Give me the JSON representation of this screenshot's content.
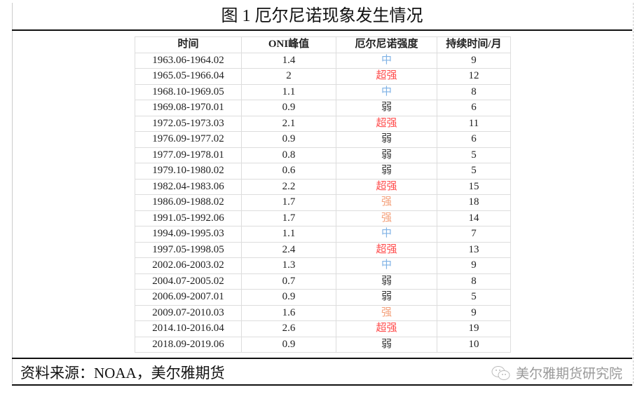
{
  "title": "图 1  厄尔尼诺现象发生情况",
  "table": {
    "headers": [
      "时间",
      "ONI峰值",
      "厄尔尼诺强度",
      "持续时间/月"
    ],
    "rows": [
      [
        "1963.06-1964.02",
        "1.4",
        "中",
        "9"
      ],
      [
        "1965.05-1966.04",
        "2",
        "超强",
        "12"
      ],
      [
        "1968.10-1969.05",
        "1.1",
        "中",
        "8"
      ],
      [
        "1969.08-1970.01",
        "0.9",
        "弱",
        "6"
      ],
      [
        "1972.05-1973.03",
        "2.1",
        "超强",
        "11"
      ],
      [
        "1976.09-1977.02",
        "0.9",
        "弱",
        "6"
      ],
      [
        "1977.09-1978.01",
        "0.8",
        "弱",
        "5"
      ],
      [
        "1979.10-1980.02",
        "0.6",
        "弱",
        "5"
      ],
      [
        "1982.04-1983.06",
        "2.2",
        "超强",
        "15"
      ],
      [
        "1986.09-1988.02",
        "1.7",
        "强",
        "18"
      ],
      [
        "1991.05-1992.06",
        "1.7",
        "强",
        "14"
      ],
      [
        "1994.09-1995.03",
        "1.1",
        "中",
        "7"
      ],
      [
        "1997.05-1998.05",
        "2.4",
        "超强",
        "13"
      ],
      [
        "2002.06-2003.02",
        "1.3",
        "中",
        "9"
      ],
      [
        "2004.07-2005.02",
        "0.7",
        "弱",
        "8"
      ],
      [
        "2006.09-2007.01",
        "0.9",
        "弱",
        "5"
      ],
      [
        "2009.07-2010.03",
        "1.6",
        "强",
        "9"
      ],
      [
        "2014.10-2016.04",
        "2.6",
        "超强",
        "19"
      ],
      [
        "2018.09-2019.06",
        "0.9",
        "弱",
        "10"
      ]
    ]
  },
  "intensity_colors": {
    "超强": "#ff4d4d",
    "强": "#f4a07a",
    "中": "#7fb2e5",
    "弱": "#333333"
  },
  "footer": {
    "source": "资料来源：NOAA，美尔雅期货",
    "brand": "美尔雅期货研究院",
    "brand_icon": "wechat-icon"
  }
}
